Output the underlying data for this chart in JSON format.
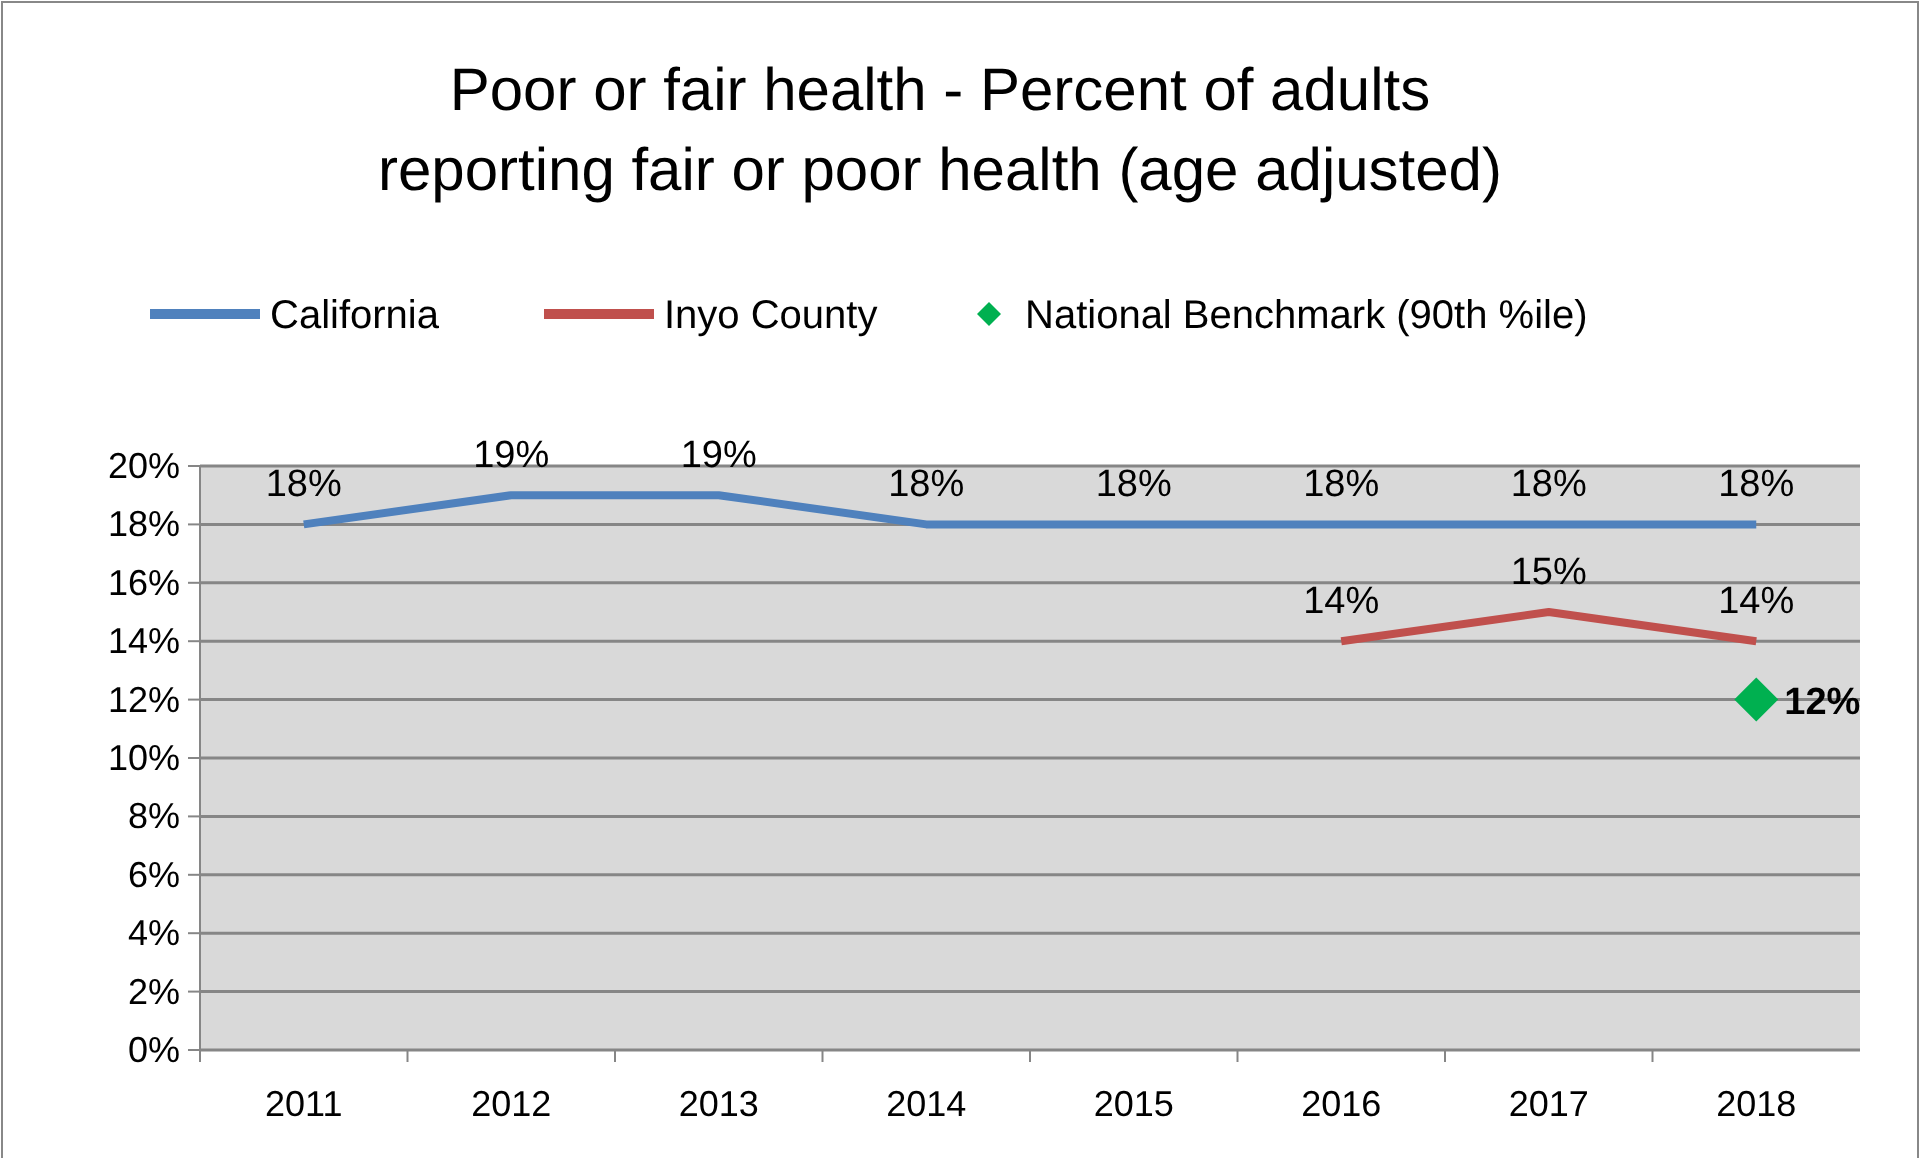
{
  "chart_data": {
    "type": "line",
    "title": "Poor or fair health - Percent of adults reporting fair or poor health (age adjusted)",
    "categories": [
      "2011",
      "2012",
      "2013",
      "2014",
      "2015",
      "2016",
      "2017",
      "2018"
    ],
    "series": [
      {
        "name": "California",
        "color": "#4f81bd",
        "values": [
          18,
          19,
          19,
          18,
          18,
          18,
          18,
          18
        ],
        "value_labels": [
          "18%",
          "19%",
          "19%",
          "18%",
          "18%",
          "18%",
          "18%",
          "18%"
        ]
      },
      {
        "name": "Inyo County",
        "color": "#c0504d",
        "values": [
          null,
          null,
          null,
          null,
          null,
          14,
          15,
          14
        ],
        "value_labels": [
          null,
          null,
          null,
          null,
          null,
          "14%",
          "15%",
          "14%"
        ]
      },
      {
        "name": "National Benchmark (90th %ile)",
        "type": "scatter",
        "marker": "diamond",
        "color": "#00b050",
        "values": [
          null,
          null,
          null,
          null,
          null,
          null,
          null,
          12
        ],
        "value_labels": [
          null,
          null,
          null,
          null,
          null,
          null,
          null,
          "12%"
        ]
      }
    ],
    "ylim": [
      0,
      20
    ],
    "yticks": [
      {
        "value": 0,
        "label": "0%"
      },
      {
        "value": 2,
        "label": "2%"
      },
      {
        "value": 4,
        "label": "4%"
      },
      {
        "value": 6,
        "label": "6%"
      },
      {
        "value": 8,
        "label": "8%"
      },
      {
        "value": 10,
        "label": "10%"
      },
      {
        "value": 12,
        "label": "12%"
      },
      {
        "value": 14,
        "label": "14%"
      },
      {
        "value": 16,
        "label": "16%"
      },
      {
        "value": 18,
        "label": "18%"
      },
      {
        "value": 20,
        "label": "20%"
      }
    ],
    "grid": "y",
    "legend": "top"
  }
}
